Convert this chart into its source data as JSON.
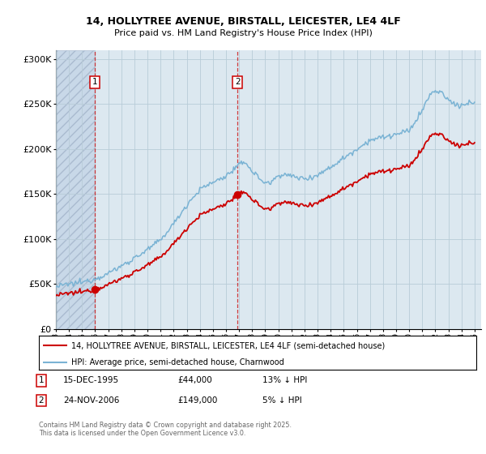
{
  "title": "14, HOLLYTREE AVENUE, BIRSTALL, LEICESTER, LE4 4LF",
  "subtitle": "Price paid vs. HM Land Registry's House Price Index (HPI)",
  "legend_line1": "14, HOLLYTREE AVENUE, BIRSTALL, LEICESTER, LE4 4LF (semi-detached house)",
  "legend_line2": "HPI: Average price, semi-detached house, Charnwood",
  "footer": "Contains HM Land Registry data © Crown copyright and database right 2025.\nThis data is licensed under the Open Government Licence v3.0.",
  "sale1_date": "15-DEC-1995",
  "sale1_price": 44000,
  "sale1_hpi": "13% ↓ HPI",
  "sale2_date": "24-NOV-2006",
  "sale2_price": 149000,
  "sale2_hpi": "5% ↓ HPI",
  "hpi_color": "#7ab3d4",
  "sale_color": "#cc0000",
  "background_color": "#dce8f0",
  "hatch_bg_color": "#c8d8e8",
  "ylim": [
    0,
    310000
  ],
  "yticks": [
    0,
    50000,
    100000,
    150000,
    200000,
    250000,
    300000
  ],
  "ytick_labels": [
    "£0",
    "£50K",
    "£100K",
    "£150K",
    "£200K",
    "£250K",
    "£300K"
  ],
  "xstart": 1993,
  "xend": 2025
}
